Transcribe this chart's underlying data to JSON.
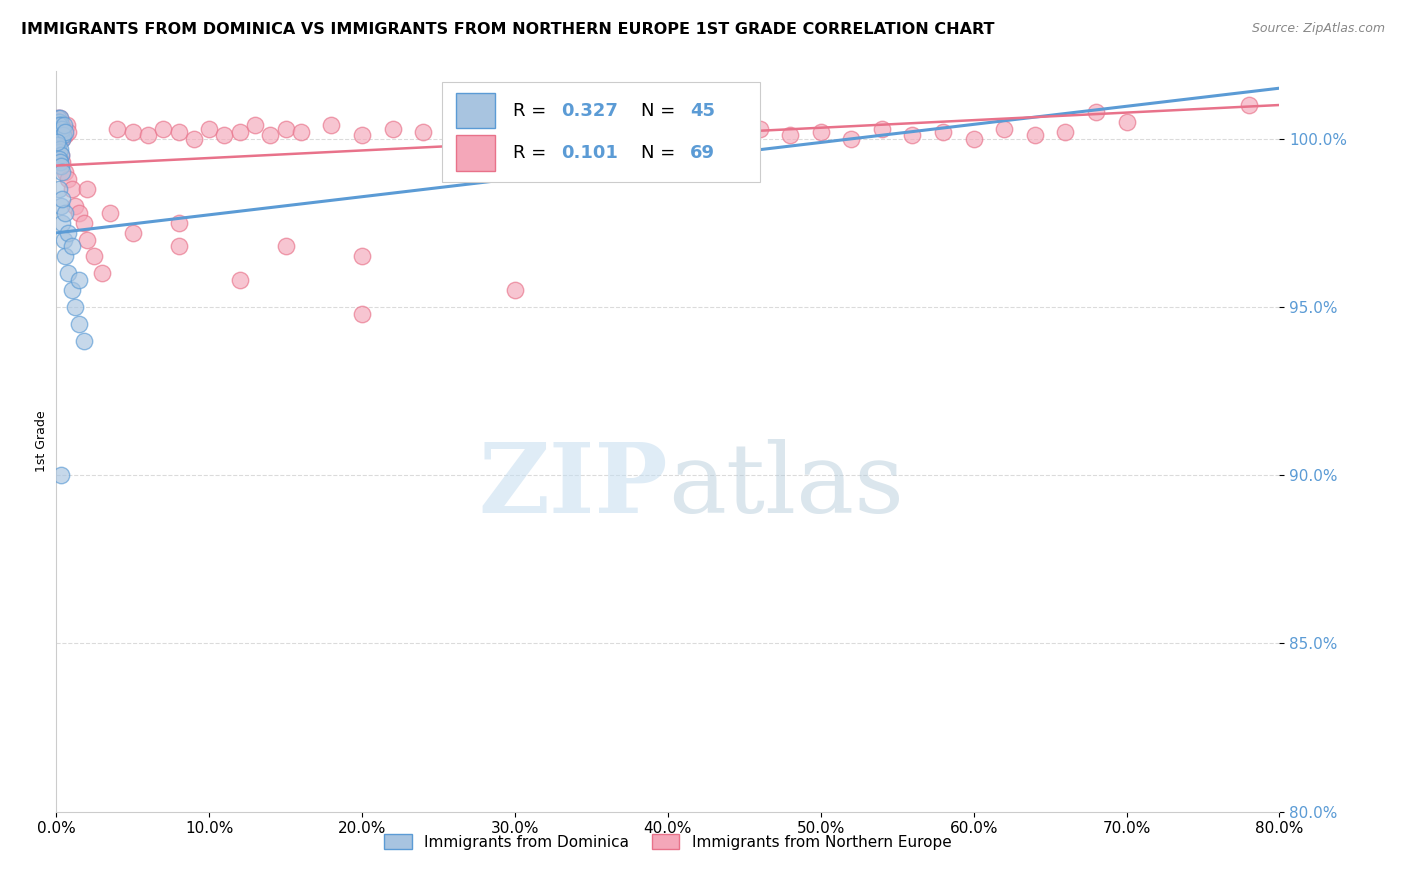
{
  "title": "IMMIGRANTS FROM DOMINICA VS IMMIGRANTS FROM NORTHERN EUROPE 1ST GRADE CORRELATION CHART",
  "source": "Source: ZipAtlas.com",
  "xlim": [
    0.0,
    80.0
  ],
  "ylim": [
    80.0,
    102.0
  ],
  "ylabel": "1st Grade",
  "ytick_vals": [
    80.0,
    85.0,
    90.0,
    95.0,
    100.0
  ],
  "xtick_vals": [
    0.0,
    10.0,
    20.0,
    30.0,
    40.0,
    50.0,
    60.0,
    70.0,
    80.0
  ],
  "r_blue": 0.327,
  "n_blue": 45,
  "r_pink": 0.101,
  "n_pink": 69,
  "blue_color": "#5b9bd5",
  "pink_color": "#e8728a",
  "blue_fill": "#a8c4e0",
  "pink_fill": "#f4a7b9",
  "blue_line": [
    0.0,
    80.0,
    97.2,
    101.5
  ],
  "pink_line": [
    0.0,
    80.0,
    99.2,
    101.0
  ],
  "watermark_zip": "ZIP",
  "watermark_atlas": "atlas",
  "background_color": "#ffffff",
  "grid_color": "#cccccc",
  "tick_color": "#5b9bd5",
  "legend1_label": "Immigrants from Dominica",
  "legend2_label": "Immigrants from Northern Europe"
}
